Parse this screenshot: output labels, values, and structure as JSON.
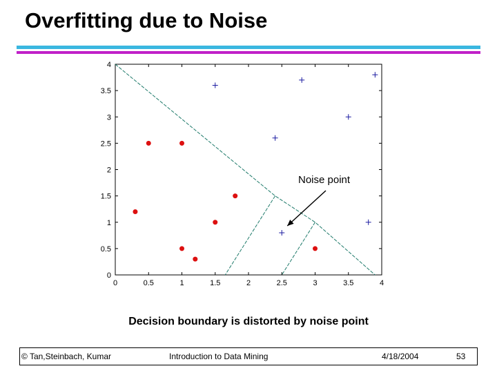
{
  "slide": {
    "title": "Overfitting due to Noise",
    "caption": "Decision boundary is distorted by noise point",
    "footer": {
      "left": "© Tan,Steinbach, Kumar",
      "center": "Introduction to Data Mining",
      "date": "4/18/2004",
      "page": "53"
    }
  },
  "colors": {
    "accent_bar_top": "#3ab7e0",
    "accent_bar_bottom": "#c020c8",
    "dot": "#dd1010",
    "plus": "#1a1aa0",
    "boundary": "#1e7a6a"
  },
  "chart_data": {
    "type": "scatter",
    "xlim": [
      0,
      4
    ],
    "ylim": [
      0,
      4
    ],
    "x_ticks": [
      "0",
      "0.5",
      "1",
      "1.5",
      "2",
      "2.5",
      "3",
      "3.5",
      "4"
    ],
    "y_ticks": [
      "0",
      "0.5",
      "1",
      "1.5",
      "2",
      "2.5",
      "3",
      "3.5",
      "4"
    ],
    "series": [
      {
        "marker": "dot",
        "points": [
          [
            0.5,
            2.5
          ],
          [
            1.0,
            2.5
          ],
          [
            0.3,
            1.2
          ],
          [
            1.8,
            1.5
          ],
          [
            1.5,
            1.0
          ],
          [
            1.0,
            0.5
          ],
          [
            1.2,
            0.3
          ],
          [
            3.0,
            0.5
          ]
        ]
      },
      {
        "marker": "plus",
        "points": [
          [
            1.5,
            3.6
          ],
          [
            2.8,
            3.7
          ],
          [
            3.9,
            3.8
          ],
          [
            3.5,
            3.0
          ],
          [
            2.4,
            2.6
          ],
          [
            3.8,
            1.0
          ],
          [
            2.5,
            0.8
          ]
        ]
      }
    ],
    "boundaries": [
      [
        [
          0.0,
          4.0
        ],
        [
          2.4,
          1.5
        ],
        [
          3.0,
          1.0
        ],
        [
          3.9,
          0.0
        ]
      ],
      [
        [
          2.4,
          1.5
        ],
        [
          1.65,
          0.0
        ]
      ],
      [
        [
          3.0,
          1.0
        ],
        [
          2.5,
          0.0
        ]
      ]
    ],
    "annotation": {
      "text": "Noise point",
      "target": [
        2.5,
        0.8
      ]
    }
  }
}
